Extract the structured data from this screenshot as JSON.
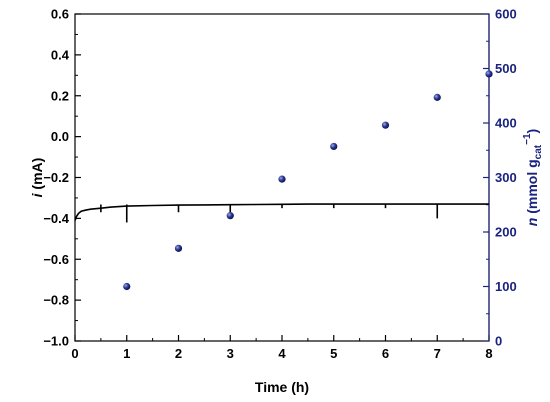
{
  "chart_data": {
    "type": "line+scatter",
    "xlabel": "Time (h)",
    "ylabel_left": {
      "italic": "i",
      "rest": " (mA)"
    },
    "ylabel_right": {
      "italic": "n",
      "mid": " (mmol g",
      "sub": "cat",
      "sup": "−1",
      "close": ")"
    },
    "xlim": [
      0,
      8
    ],
    "ylim_left": [
      -1.0,
      0.6
    ],
    "ylim_right": [
      0,
      600
    ],
    "x_ticks": [
      "0",
      "1",
      "2",
      "3",
      "4",
      "5",
      "6",
      "7",
      "8"
    ],
    "y_left_ticks": [
      "−1.0",
      "−0.8",
      "−0.6",
      "−0.4",
      "−0.2",
      "0.0",
      "0.2",
      "0.4",
      "0.6"
    ],
    "y_right_ticks": [
      "0",
      "100",
      "200",
      "300",
      "400",
      "500",
      "600"
    ],
    "colors": {
      "left_axis": "#000000",
      "right_axis": "#1a237e",
      "current": "#000000",
      "points": "#1a237e"
    },
    "series": [
      {
        "kind": "line",
        "axis": "left",
        "x": [
          0,
          0.03,
          0.07,
          0.12,
          0.2,
          0.3,
          0.5,
          0.7,
          1,
          1.5,
          2,
          2.5,
          3,
          3.5,
          4,
          4.5,
          5,
          6,
          7,
          8
        ],
        "y": [
          -0.41,
          -0.39,
          -0.375,
          -0.365,
          -0.36,
          -0.355,
          -0.35,
          -0.345,
          -0.34,
          -0.337,
          -0.335,
          -0.334,
          -0.333,
          -0.332,
          -0.331,
          -0.33,
          -0.33,
          -0.33,
          -0.33,
          -0.33
        ],
        "spikes": [
          {
            "x": 0.5,
            "y": -0.37
          },
          {
            "x": 1,
            "y": -0.42
          },
          {
            "x": 2,
            "y": -0.37
          },
          {
            "x": 3,
            "y": -0.37
          },
          {
            "x": 4,
            "y": -0.35
          },
          {
            "x": 5,
            "y": -0.35
          },
          {
            "x": 6,
            "y": -0.35
          },
          {
            "x": 7,
            "y": -0.4
          }
        ]
      },
      {
        "kind": "scatter",
        "axis": "right",
        "x": [
          1,
          2,
          3,
          4,
          5,
          6,
          7,
          8
        ],
        "y": [
          100,
          170,
          230,
          297,
          357,
          396,
          447,
          490
        ]
      }
    ]
  }
}
